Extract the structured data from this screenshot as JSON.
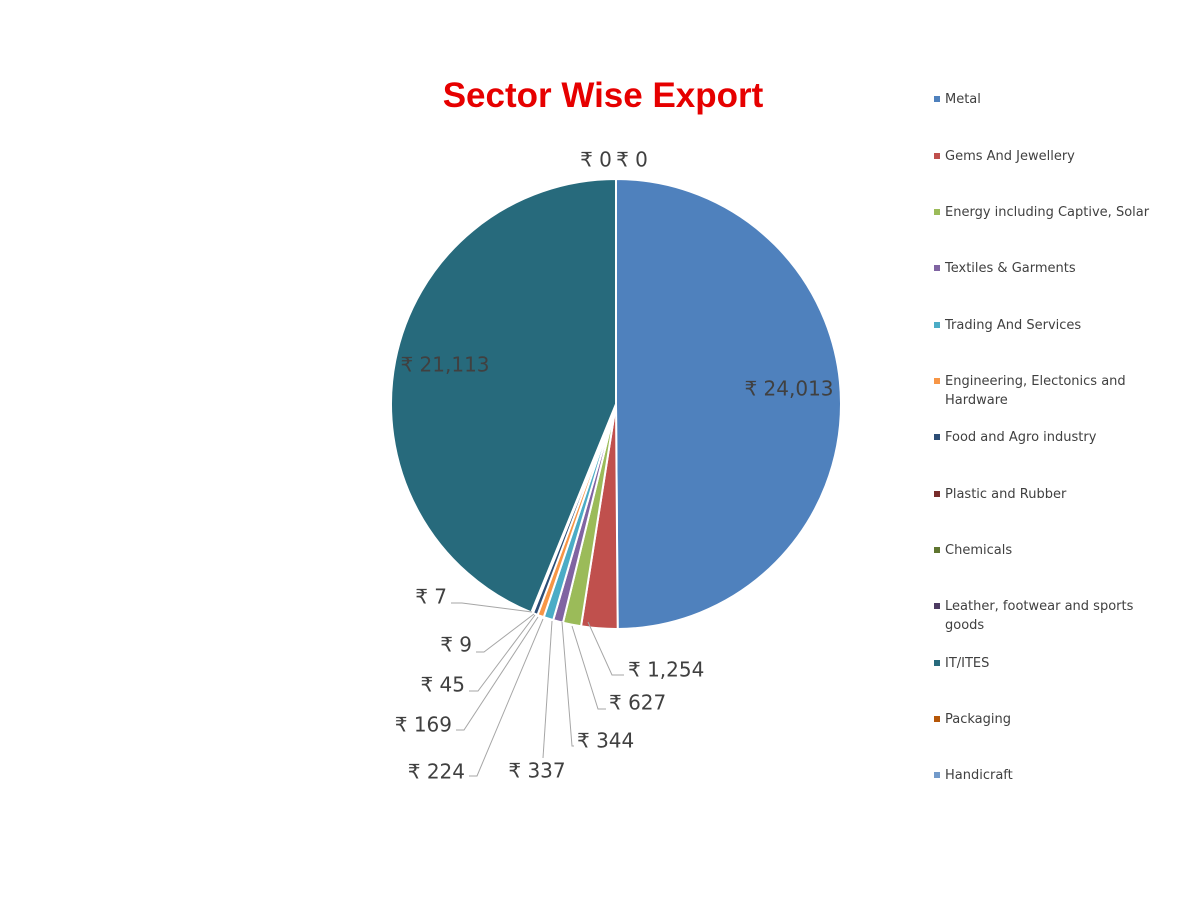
{
  "chart_data": {
    "type": "pie",
    "title": "Sector Wise Export",
    "currency_symbol": "₹",
    "slices": [
      {
        "name": "Metal",
        "value": 24013,
        "label": "₹ 24,013",
        "color": "#4f81bd"
      },
      {
        "name": "Gems And Jewellery",
        "value": 1254,
        "label": "₹ 1,254",
        "color": "#c0504d"
      },
      {
        "name": "Energy including Captive, Solar",
        "value": 627,
        "label": "₹ 627",
        "color": "#9bbb59"
      },
      {
        "name": "Textiles & Garments",
        "value": 344,
        "label": "₹ 344",
        "color": "#8064a2"
      },
      {
        "name": "Trading And Services",
        "value": 337,
        "label": "₹ 337",
        "color": "#4bacc6"
      },
      {
        "name": "Engineering, Electonics and Hardware",
        "value": 224,
        "label": "₹ 224",
        "color": "#f79646"
      },
      {
        "name": "Food and Agro industry",
        "value": 169,
        "label": "₹ 169",
        "color": "#2c4d75"
      },
      {
        "name": "Plastic and Rubber",
        "value": 45,
        "label": "₹ 45",
        "color": "#772c2a"
      },
      {
        "name": "Chemicals",
        "value": 9,
        "label": "₹ 9",
        "color": "#5f7530"
      },
      {
        "name": "Leather, footwear and sports goods",
        "value": 7,
        "label": "₹ 7",
        "color": "#4d3b62"
      },
      {
        "name": "IT/ITES",
        "value": 21113,
        "label": "₹ 21,113",
        "color": "#276a7c"
      },
      {
        "name": "Packaging",
        "value": 0,
        "label": "₹ 0",
        "color": "#b65708"
      },
      {
        "name": "Handicraft",
        "value": 0,
        "label": "₹ 0",
        "color": "#729aca"
      }
    ],
    "legend_position": "right"
  }
}
